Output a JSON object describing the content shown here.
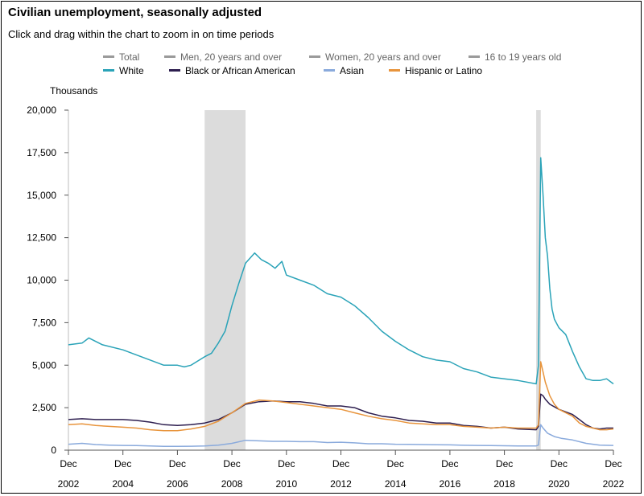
{
  "header": {
    "title": "Civilian unemployment, seasonally adjusted",
    "subtitle": "Click and drag within the chart to zoom in on time periods"
  },
  "colors": {
    "inactive": "#9a9a9a",
    "white": "#2aa3b8",
    "black": "#2d1e4f",
    "asian": "#8aaadc",
    "hispanic": "#e8943c",
    "recession": "#dcdcdc"
  },
  "legend": {
    "row1": [
      {
        "label": "Total",
        "active": false,
        "color": "#9a9a9a"
      },
      {
        "label": "Men, 20 years and over",
        "active": false,
        "color": "#9a9a9a"
      },
      {
        "label": "Women, 20 years and over",
        "active": false,
        "color": "#9a9a9a"
      },
      {
        "label": "16 to 19 years old",
        "active": false,
        "color": "#9a9a9a"
      }
    ],
    "row2": [
      {
        "label": "White",
        "active": true,
        "color": "#2aa3b8"
      },
      {
        "label": "Black or African American",
        "active": true,
        "color": "#2d1e4f"
      },
      {
        "label": "Asian",
        "active": true,
        "color": "#8aaadc"
      },
      {
        "label": "Hispanic or Latino",
        "active": true,
        "color": "#e8943c"
      }
    ]
  },
  "chart_data": {
    "type": "line",
    "title": "Civilian unemployment, seasonally adjusted",
    "ylabel": "Thousands",
    "ylim": [
      0,
      20000
    ],
    "yticks": [
      0,
      2500,
      5000,
      7500,
      10000,
      12500,
      15000,
      17500,
      20000
    ],
    "ytick_labels": [
      "0",
      "2,500",
      "5,000",
      "7,500",
      "10,000",
      "12,500",
      "15,000",
      "17,500",
      "20,000"
    ],
    "xlim": [
      "2002-12",
      "2022-12"
    ],
    "xticks": [
      "2002-12",
      "2004-12",
      "2006-12",
      "2008-12",
      "2010-12",
      "2012-12",
      "2014-12",
      "2016-12",
      "2018-12",
      "2020-12",
      "2022-12"
    ],
    "xtick_labels": [
      [
        "Dec",
        "2002"
      ],
      [
        "Dec",
        "2004"
      ],
      [
        "Dec",
        "2006"
      ],
      [
        "Dec",
        "2008"
      ],
      [
        "Dec",
        "2010"
      ],
      [
        "Dec",
        "2012"
      ],
      [
        "Dec",
        "2014"
      ],
      [
        "Dec",
        "2016"
      ],
      [
        "Dec",
        "2018"
      ],
      [
        "Dec",
        "2020"
      ],
      [
        "Dec",
        "2022"
      ]
    ],
    "recessions": [
      [
        "2007-12",
        "2009-06"
      ],
      [
        "2020-02",
        "2020-04"
      ]
    ],
    "series": [
      {
        "name": "White",
        "color": "#2aa3b8",
        "points": [
          [
            "2002-12",
            6200
          ],
          [
            "2003-06",
            6300
          ],
          [
            "2003-09",
            6600
          ],
          [
            "2004-03",
            6200
          ],
          [
            "2004-12",
            5900
          ],
          [
            "2005-06",
            5600
          ],
          [
            "2005-12",
            5300
          ],
          [
            "2006-06",
            5000
          ],
          [
            "2006-12",
            5000
          ],
          [
            "2007-03",
            4900
          ],
          [
            "2007-06",
            5000
          ],
          [
            "2007-12",
            5500
          ],
          [
            "2008-03",
            5700
          ],
          [
            "2008-06",
            6300
          ],
          [
            "2008-09",
            7000
          ],
          [
            "2008-12",
            8500
          ],
          [
            "2009-03",
            9800
          ],
          [
            "2009-06",
            11000
          ],
          [
            "2009-10",
            11600
          ],
          [
            "2010-01",
            11200
          ],
          [
            "2010-04",
            11000
          ],
          [
            "2010-07",
            10700
          ],
          [
            "2010-10",
            11100
          ],
          [
            "2010-12",
            10300
          ],
          [
            "2011-06",
            10000
          ],
          [
            "2011-12",
            9700
          ],
          [
            "2012-06",
            9200
          ],
          [
            "2012-12",
            9000
          ],
          [
            "2013-06",
            8500
          ],
          [
            "2013-12",
            7800
          ],
          [
            "2014-06",
            7000
          ],
          [
            "2014-12",
            6400
          ],
          [
            "2015-06",
            5900
          ],
          [
            "2015-12",
            5500
          ],
          [
            "2016-06",
            5300
          ],
          [
            "2016-12",
            5200
          ],
          [
            "2017-06",
            4800
          ],
          [
            "2017-12",
            4600
          ],
          [
            "2018-06",
            4300
          ],
          [
            "2018-12",
            4200
          ],
          [
            "2019-06",
            4100
          ],
          [
            "2020-02",
            3900
          ],
          [
            "2020-03",
            5000
          ],
          [
            "2020-04",
            17200
          ],
          [
            "2020-05",
            15000
          ],
          [
            "2020-06",
            12500
          ],
          [
            "2020-07",
            11400
          ],
          [
            "2020-08",
            9500
          ],
          [
            "2020-09",
            8300
          ],
          [
            "2020-10",
            7700
          ],
          [
            "2020-12",
            7200
          ],
          [
            "2021-03",
            6800
          ],
          [
            "2021-06",
            5800
          ],
          [
            "2021-09",
            4900
          ],
          [
            "2021-12",
            4200
          ],
          [
            "2022-03",
            4100
          ],
          [
            "2022-06",
            4100
          ],
          [
            "2022-09",
            4200
          ],
          [
            "2022-12",
            3900
          ]
        ]
      },
      {
        "name": "Black or African American",
        "color": "#2d1e4f",
        "points": [
          [
            "2002-12",
            1800
          ],
          [
            "2003-06",
            1850
          ],
          [
            "2003-12",
            1800
          ],
          [
            "2004-06",
            1800
          ],
          [
            "2004-12",
            1800
          ],
          [
            "2005-06",
            1750
          ],
          [
            "2005-12",
            1650
          ],
          [
            "2006-06",
            1500
          ],
          [
            "2006-12",
            1450
          ],
          [
            "2007-06",
            1500
          ],
          [
            "2007-12",
            1600
          ],
          [
            "2008-06",
            1800
          ],
          [
            "2008-12",
            2200
          ],
          [
            "2009-06",
            2700
          ],
          [
            "2009-12",
            2850
          ],
          [
            "2010-06",
            2900
          ],
          [
            "2010-12",
            2850
          ],
          [
            "2011-06",
            2850
          ],
          [
            "2011-12",
            2750
          ],
          [
            "2012-06",
            2600
          ],
          [
            "2012-12",
            2600
          ],
          [
            "2013-06",
            2500
          ],
          [
            "2013-12",
            2200
          ],
          [
            "2014-06",
            2000
          ],
          [
            "2014-12",
            1900
          ],
          [
            "2015-06",
            1750
          ],
          [
            "2015-12",
            1700
          ],
          [
            "2016-06",
            1600
          ],
          [
            "2016-12",
            1600
          ],
          [
            "2017-06",
            1450
          ],
          [
            "2017-12",
            1400
          ],
          [
            "2018-06",
            1300
          ],
          [
            "2018-12",
            1350
          ],
          [
            "2019-06",
            1250
          ],
          [
            "2020-02",
            1200
          ],
          [
            "2020-03",
            1400
          ],
          [
            "2020-04",
            3300
          ],
          [
            "2020-05",
            3200
          ],
          [
            "2020-06",
            3000
          ],
          [
            "2020-08",
            2700
          ],
          [
            "2020-12",
            2400
          ],
          [
            "2021-06",
            2100
          ],
          [
            "2021-09",
            1800
          ],
          [
            "2021-12",
            1500
          ],
          [
            "2022-03",
            1300
          ],
          [
            "2022-06",
            1250
          ],
          [
            "2022-09",
            1300
          ],
          [
            "2022-12",
            1300
          ]
        ]
      },
      {
        "name": "Asian",
        "color": "#8aaadc",
        "points": [
          [
            "2002-12",
            350
          ],
          [
            "2003-06",
            400
          ],
          [
            "2003-12",
            330
          ],
          [
            "2004-06",
            300
          ],
          [
            "2004-12",
            280
          ],
          [
            "2005-06",
            270
          ],
          [
            "2005-12",
            250
          ],
          [
            "2006-06",
            220
          ],
          [
            "2006-12",
            220
          ],
          [
            "2007-06",
            230
          ],
          [
            "2007-12",
            250
          ],
          [
            "2008-06",
            300
          ],
          [
            "2008-12",
            400
          ],
          [
            "2009-06",
            580
          ],
          [
            "2009-12",
            550
          ],
          [
            "2010-06",
            520
          ],
          [
            "2010-12",
            520
          ],
          [
            "2011-06",
            500
          ],
          [
            "2011-12",
            500
          ],
          [
            "2012-06",
            450
          ],
          [
            "2012-12",
            470
          ],
          [
            "2013-06",
            430
          ],
          [
            "2013-12",
            380
          ],
          [
            "2014-06",
            380
          ],
          [
            "2014-12",
            350
          ],
          [
            "2015-06",
            340
          ],
          [
            "2015-12",
            330
          ],
          [
            "2016-06",
            320
          ],
          [
            "2016-12",
            310
          ],
          [
            "2017-06",
            290
          ],
          [
            "2017-12",
            280
          ],
          [
            "2018-06",
            270
          ],
          [
            "2018-12",
            260
          ],
          [
            "2019-06",
            250
          ],
          [
            "2020-02",
            250
          ],
          [
            "2020-03",
            300
          ],
          [
            "2020-04",
            1500
          ],
          [
            "2020-05",
            1300
          ],
          [
            "2020-07",
            1000
          ],
          [
            "2020-10",
            800
          ],
          [
            "2021-01",
            700
          ],
          [
            "2021-06",
            600
          ],
          [
            "2021-12",
            400
          ],
          [
            "2022-06",
            300
          ],
          [
            "2022-12",
            280
          ]
        ]
      },
      {
        "name": "Hispanic or Latino",
        "color": "#e8943c",
        "points": [
          [
            "2002-12",
            1500
          ],
          [
            "2003-06",
            1550
          ],
          [
            "2003-12",
            1450
          ],
          [
            "2004-06",
            1400
          ],
          [
            "2004-12",
            1350
          ],
          [
            "2005-06",
            1300
          ],
          [
            "2005-12",
            1200
          ],
          [
            "2006-06",
            1150
          ],
          [
            "2006-12",
            1150
          ],
          [
            "2007-06",
            1250
          ],
          [
            "2007-12",
            1400
          ],
          [
            "2008-06",
            1700
          ],
          [
            "2008-12",
            2200
          ],
          [
            "2009-06",
            2750
          ],
          [
            "2009-12",
            2950
          ],
          [
            "2010-06",
            2900
          ],
          [
            "2010-12",
            2800
          ],
          [
            "2011-06",
            2700
          ],
          [
            "2011-12",
            2600
          ],
          [
            "2012-06",
            2500
          ],
          [
            "2012-12",
            2400
          ],
          [
            "2013-06",
            2200
          ],
          [
            "2013-12",
            2000
          ],
          [
            "2014-06",
            1850
          ],
          [
            "2014-12",
            1750
          ],
          [
            "2015-06",
            1600
          ],
          [
            "2015-12",
            1550
          ],
          [
            "2016-06",
            1500
          ],
          [
            "2016-12",
            1500
          ],
          [
            "2017-06",
            1400
          ],
          [
            "2017-12",
            1350
          ],
          [
            "2018-06",
            1300
          ],
          [
            "2018-12",
            1350
          ],
          [
            "2019-06",
            1300
          ],
          [
            "2020-02",
            1300
          ],
          [
            "2020-03",
            1500
          ],
          [
            "2020-04",
            5200
          ],
          [
            "2020-05",
            4600
          ],
          [
            "2020-06",
            4000
          ],
          [
            "2020-08",
            3200
          ],
          [
            "2020-10",
            2700
          ],
          [
            "2020-12",
            2400
          ],
          [
            "2021-06",
            2000
          ],
          [
            "2021-09",
            1600
          ],
          [
            "2021-12",
            1400
          ],
          [
            "2022-03",
            1300
          ],
          [
            "2022-06",
            1200
          ],
          [
            "2022-09",
            1200
          ],
          [
            "2022-12",
            1250
          ]
        ]
      }
    ]
  }
}
